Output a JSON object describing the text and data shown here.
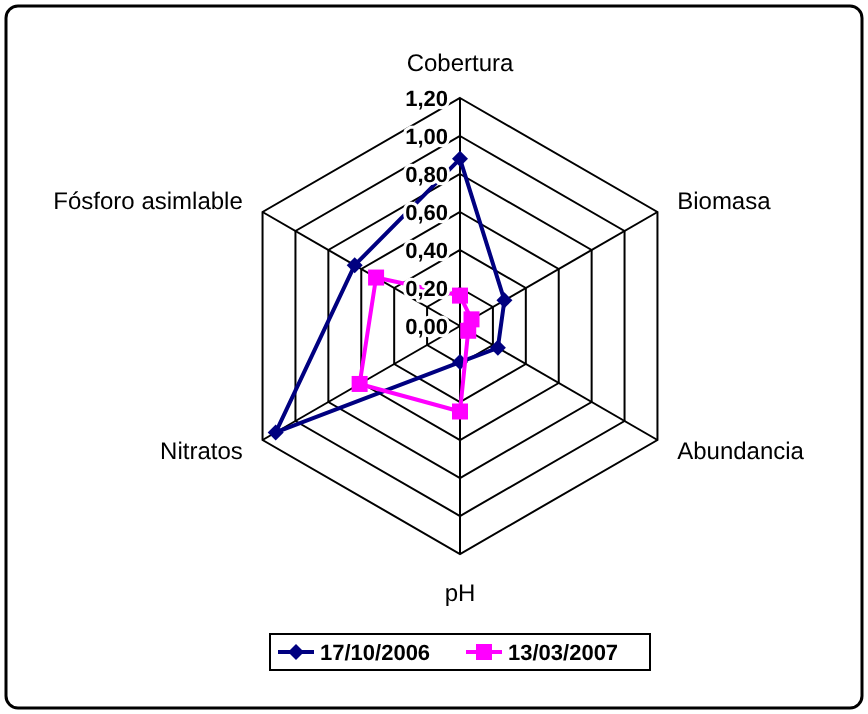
{
  "chart_data": {
    "type": "radar",
    "categories": [
      "Cobertura",
      "Biomasa",
      "Abundancia",
      "pH",
      "Nitratos",
      "Fósforo asimlable"
    ],
    "series": [
      {
        "name": "17/10/2006",
        "color": "#000080",
        "values": [
          0.88,
          0.27,
          0.23,
          0.19,
          1.12,
          0.64
        ],
        "marker": "diamond"
      },
      {
        "name": "13/03/2007",
        "color": "#ff00ff",
        "values": [
          0.16,
          0.07,
          0.05,
          0.45,
          0.61,
          0.51
        ],
        "marker": "square"
      }
    ],
    "ylim": [
      0,
      1.2
    ],
    "yticks": [
      {
        "value": 0,
        "label": "0,00"
      },
      {
        "value": 0.2,
        "label": "0,20"
      },
      {
        "value": 0.4,
        "label": "0,40"
      },
      {
        "value": 0.6,
        "label": "0,60"
      },
      {
        "value": 0.8,
        "label": "0,80"
      },
      {
        "value": 1,
        "label": "1,00"
      },
      {
        "value": 1.2,
        "label": "1,20"
      }
    ],
    "grid": true,
    "legend": "bottom"
  }
}
